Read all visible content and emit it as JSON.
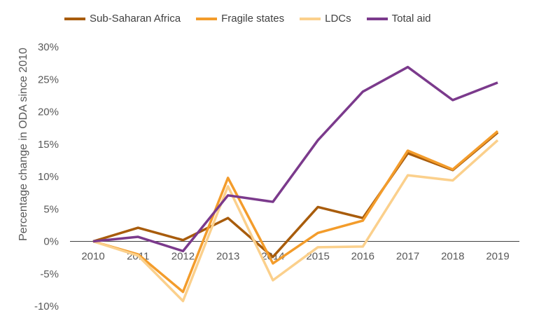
{
  "chart_data": {
    "type": "line",
    "title": "",
    "xlabel": "",
    "ylabel": "Percentage change in ODA since 2010",
    "categories": [
      "2010",
      "2011",
      "2012",
      "2013",
      "2014",
      "2015",
      "2016",
      "2017",
      "2018",
      "2019"
    ],
    "yticks": [
      "30%",
      "25%",
      "20%",
      "15%",
      "10%",
      "5%",
      "0%",
      "-5%",
      "-10%"
    ],
    "ylim": [
      -10,
      30
    ],
    "grid": false,
    "legend_position": "top",
    "series": [
      {
        "name": "Sub-Saharan Africa",
        "color": "#a85c0c",
        "values": [
          0,
          2.1,
          0.2,
          3.6,
          -2.4,
          5.3,
          3.6,
          13.6,
          11.0,
          16.8
        ]
      },
      {
        "name": "Fragile states",
        "color": "#f39c2b",
        "values": [
          0,
          -2.0,
          -7.8,
          9.8,
          -3.4,
          1.3,
          3.2,
          14.0,
          11.1,
          17.0
        ]
      },
      {
        "name": "LDCs",
        "color": "#fbd08c",
        "values": [
          0,
          -2.2,
          -9.2,
          8.5,
          -6.0,
          -0.9,
          -0.8,
          10.2,
          9.4,
          15.6
        ]
      },
      {
        "name": "Total aid",
        "color": "#7b3a8c",
        "values": [
          0,
          0.7,
          -1.5,
          7.1,
          6.1,
          15.6,
          23.1,
          26.9,
          21.8,
          24.5
        ]
      }
    ]
  }
}
